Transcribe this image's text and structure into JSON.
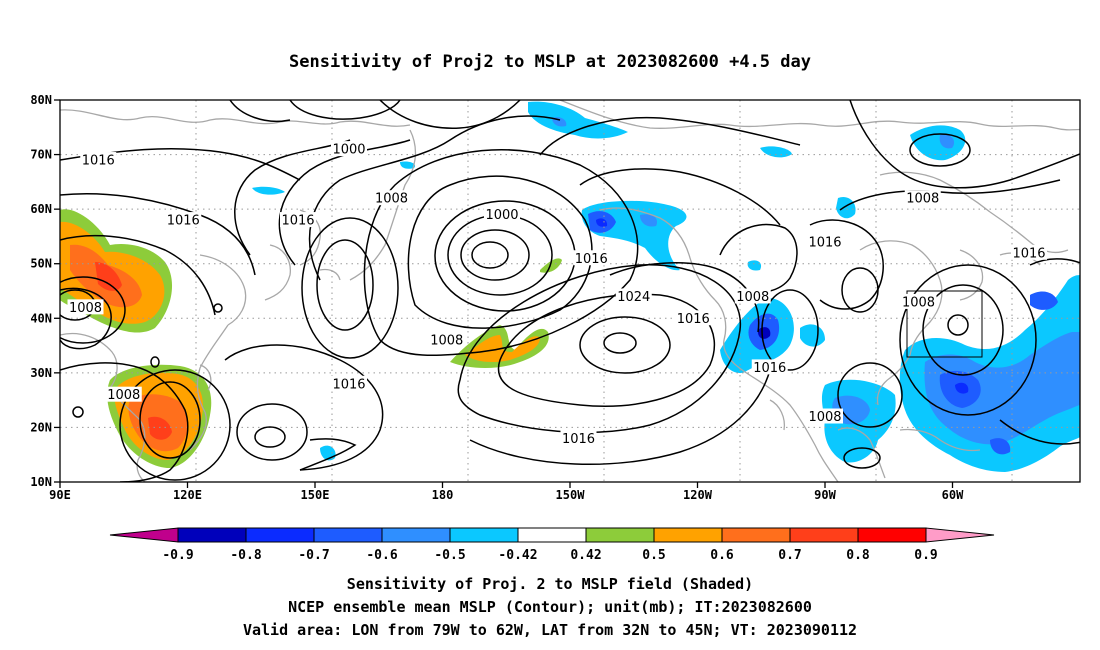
{
  "title": "Sensitivity of Proj2 to MSLP at 2023082600 +4.5 day",
  "map": {
    "lat_ticks": [
      "80N",
      "70N",
      "60N",
      "50N",
      "40N",
      "30N",
      "20N",
      "10N"
    ],
    "lon_ticks": [
      "90E",
      "120E",
      "150E",
      "180",
      "150W",
      "120W",
      "90W",
      "60W"
    ],
    "grid": "dotted",
    "valid_box": {
      "lon": [
        -79,
        -62
      ],
      "lat": [
        32,
        45
      ]
    },
    "contour_unit": "mb",
    "contour_labels": [
      {
        "text": "1016",
        "lon": 99,
        "lat": 69
      },
      {
        "text": "1000",
        "lon": 158,
        "lat": 71
      },
      {
        "text": "1008",
        "lon": 168,
        "lat": 62
      },
      {
        "text": "1016",
        "lon": 119,
        "lat": 58
      },
      {
        "text": "1016",
        "lon": 146,
        "lat": 58
      },
      {
        "text": "1000",
        "lon": 194,
        "lat": 59
      },
      {
        "text": "1016",
        "lon": 215,
        "lat": 51
      },
      {
        "text": "1008",
        "lon": 96,
        "lat": 42
      },
      {
        "text": "1024",
        "lon": 225,
        "lat": 44
      },
      {
        "text": "1008",
        "lon": 181,
        "lat": 36
      },
      {
        "text": "1016",
        "lon": 158,
        "lat": 28
      },
      {
        "text": "1008",
        "lon": 105,
        "lat": 26
      },
      {
        "text": "1016",
        "lon": 212,
        "lat": 18
      },
      {
        "text": "1016",
        "lon": 239,
        "lat": 40
      },
      {
        "text": "1008",
        "lon": 253,
        "lat": 44
      },
      {
        "text": "1016",
        "lon": 270,
        "lat": 54
      },
      {
        "text": "1016",
        "lon": 257,
        "lat": 31
      },
      {
        "text": "1008",
        "lon": 270,
        "lat": 22
      },
      {
        "text": "1008",
        "lon": 293,
        "lat": 62
      },
      {
        "text": "1008",
        "lon": 292,
        "lat": 43
      },
      {
        "text": "1016",
        "lon": 318,
        "lat": 52
      }
    ]
  },
  "colorbar": {
    "labels": [
      "-0.9",
      "-0.8",
      "-0.7",
      "-0.6",
      "-0.5",
      "-0.42",
      "0.42",
      "0.5",
      "0.6",
      "0.7",
      "0.8",
      "0.9"
    ],
    "colors": [
      "#c0008c",
      "#0000bb",
      "#0b2bff",
      "#1e5cff",
      "#2f8fff",
      "#0bc8ff",
      "#ffffff",
      "#8dcc3a",
      "#ffa200",
      "#ff6f1c",
      "#ff3f1a",
      "#ff0000",
      "#ff9cc8"
    ]
  },
  "footer": {
    "line1": "Sensitivity of Proj. 2 to MSLP field (Shaded)",
    "line2": "NCEP ensemble mean MSLP (Contour); unit(mb); IT:2023082600",
    "line3": "Valid area: LON from 79W to 62W, LAT from 32N to 45N; VT: 2023090112"
  }
}
